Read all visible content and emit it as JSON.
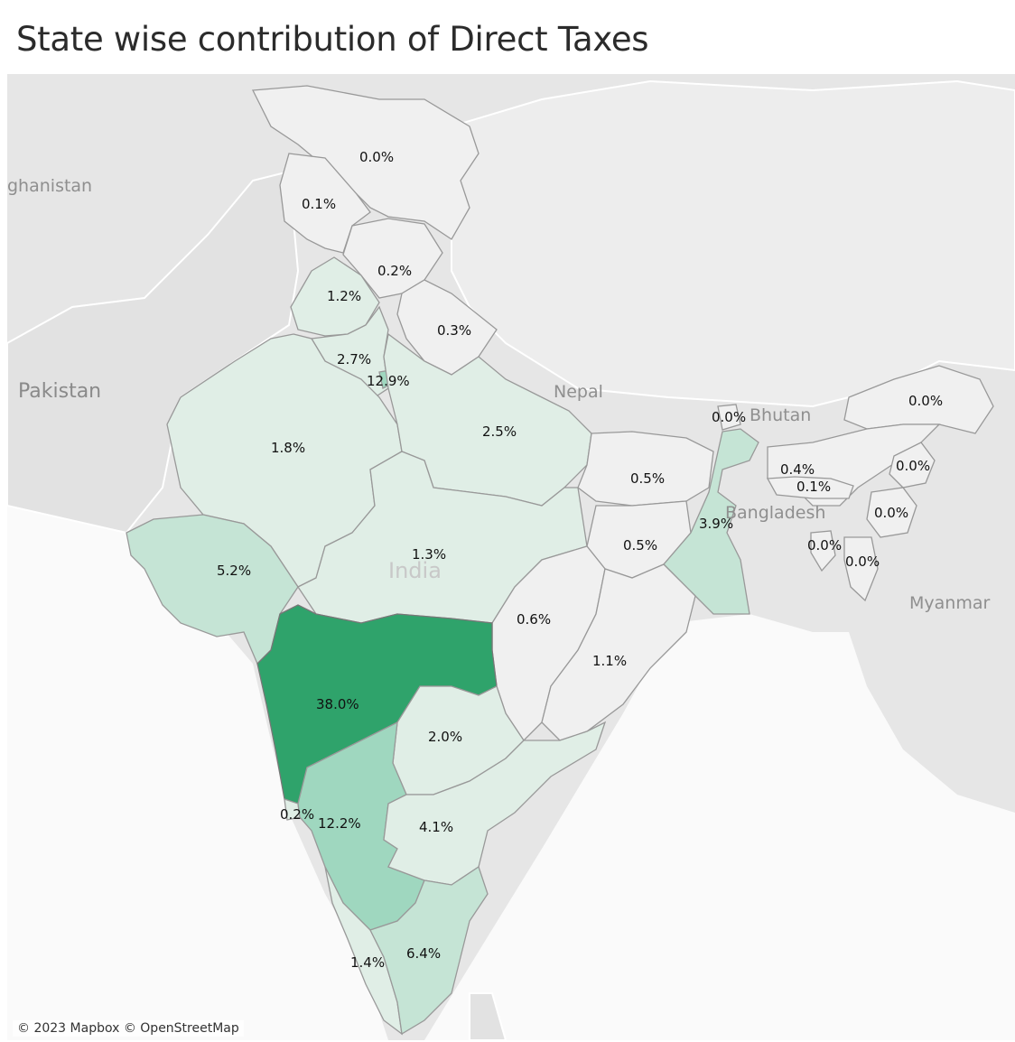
{
  "title": "State wise contribution of Direct Taxes",
  "attribution": "© 2023 Mapbox © OpenStreetMap",
  "colors": {
    "max": "#2fa36b",
    "high": "#9fd7bf",
    "mid": "#c5e4d5",
    "low": "#e0eee6",
    "none": "#f0f0f0"
  },
  "places": {
    "afghanistan": "ghanistan",
    "pakistan": "Pakistan",
    "nepal": "Nepal",
    "bhutan": "Bhutan",
    "bangladesh": "Bangladesh",
    "india": "India",
    "myanmar": "Myanmar"
  },
  "states": [
    {
      "id": "ladakh",
      "value": "0.0%"
    },
    {
      "id": "jammu-kashmir",
      "value": "0.1%"
    },
    {
      "id": "himachal-pradesh",
      "value": "0.2%"
    },
    {
      "id": "punjab",
      "value": "1.2%"
    },
    {
      "id": "uttarakhand",
      "value": "0.3%"
    },
    {
      "id": "haryana",
      "value": "2.7%"
    },
    {
      "id": "delhi",
      "value": "12.9%"
    },
    {
      "id": "rajasthan",
      "value": "1.8%"
    },
    {
      "id": "uttar-pradesh",
      "value": "2.5%"
    },
    {
      "id": "sikkim",
      "value": "0.0%"
    },
    {
      "id": "arunachal-pradesh",
      "value": "0.0%"
    },
    {
      "id": "bihar",
      "value": "0.5%"
    },
    {
      "id": "assam",
      "value": "0.4%"
    },
    {
      "id": "meghalaya",
      "value": "0.1%"
    },
    {
      "id": "nagaland",
      "value": "0.0%"
    },
    {
      "id": "manipur",
      "value": "0.0%"
    },
    {
      "id": "west-bengal",
      "value": "3.9%"
    },
    {
      "id": "tripura",
      "value": "0.0%"
    },
    {
      "id": "mizoram",
      "value": "0.0%"
    },
    {
      "id": "jharkhand",
      "value": "0.5%"
    },
    {
      "id": "gujarat",
      "value": "5.2%"
    },
    {
      "id": "madhya-pradesh",
      "value": "1.3%"
    },
    {
      "id": "chhattisgarh",
      "value": "0.6%"
    },
    {
      "id": "odisha",
      "value": "1.1%"
    },
    {
      "id": "maharashtra",
      "value": "38.0%"
    },
    {
      "id": "telangana",
      "value": "2.0%"
    },
    {
      "id": "goa",
      "value": "0.2%"
    },
    {
      "id": "karnataka",
      "value": "12.2%"
    },
    {
      "id": "andhra-pradesh",
      "value": "4.1%"
    },
    {
      "id": "kerala",
      "value": "1.4%"
    },
    {
      "id": "tamil-nadu",
      "value": "6.4%"
    }
  ]
}
